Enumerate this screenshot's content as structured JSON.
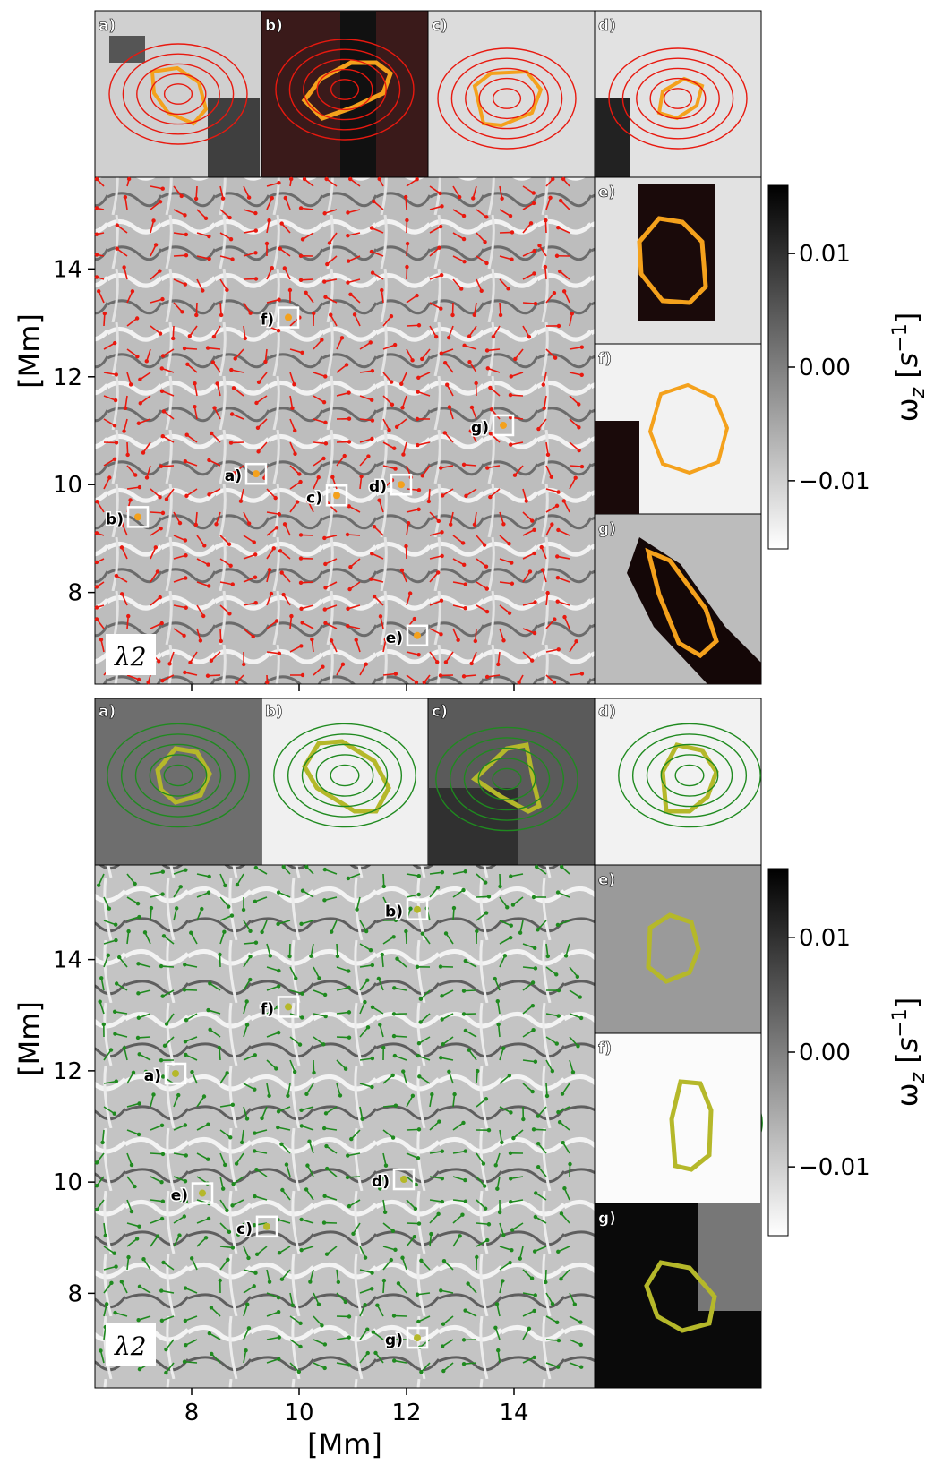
{
  "figure": {
    "panels": [
      {
        "name": "top",
        "method_label": "λ2",
        "stream_color": "#e8190f",
        "contour_color": "#f4a11c",
        "main_points": [
          {
            "id": "a)",
            "x": 9.2,
            "y": 10.2
          },
          {
            "id": "b)",
            "x": 7.0,
            "y": 9.4
          },
          {
            "id": "c)",
            "x": 10.7,
            "y": 9.8
          },
          {
            "id": "d)",
            "x": 11.9,
            "y": 10.0
          },
          {
            "id": "e)",
            "x": 12.2,
            "y": 7.2
          },
          {
            "id": "f)",
            "x": 9.8,
            "y": 13.1
          },
          {
            "id": "g)",
            "x": 13.8,
            "y": 11.1
          }
        ],
        "inset_labels": [
          "a)",
          "b)",
          "c)",
          "d)",
          "e)",
          "f)",
          "g)"
        ]
      },
      {
        "name": "bottom",
        "method_label": "λ2",
        "stream_color": "#1f8a1f",
        "contour_color": "#b5b82a",
        "main_points": [
          {
            "id": "a)",
            "x": 7.7,
            "y": 11.95
          },
          {
            "id": "b)",
            "x": 12.2,
            "y": 14.9
          },
          {
            "id": "c)",
            "x": 9.4,
            "y": 9.2
          },
          {
            "id": "d)",
            "x": 11.95,
            "y": 10.05
          },
          {
            "id": "e)",
            "x": 8.2,
            "y": 9.8
          },
          {
            "id": "f)",
            "x": 9.8,
            "y": 13.15
          },
          {
            "id": "g)",
            "x": 12.2,
            "y": 7.2
          }
        ],
        "inset_labels": [
          "a)",
          "b)",
          "c)",
          "d)",
          "e)",
          "f)",
          "g)"
        ]
      }
    ],
    "axes": {
      "y_label": "[Mm]",
      "x_label": "[Mm]",
      "y_ticks": [
        "8",
        "10",
        "12",
        "14"
      ],
      "x_ticks": [
        "8",
        "10",
        "12",
        "14"
      ],
      "range_x": [
        6.2,
        15.5
      ],
      "range_y": [
        6.3,
        15.7
      ]
    },
    "colorbar": {
      "label": "ω_z [s^-1]",
      "ticks": [
        "0.01",
        "0.00",
        "−0.01"
      ],
      "tick_values": [
        0.01,
        0.0,
        -0.01
      ],
      "range": [
        -0.016,
        0.016
      ]
    }
  }
}
